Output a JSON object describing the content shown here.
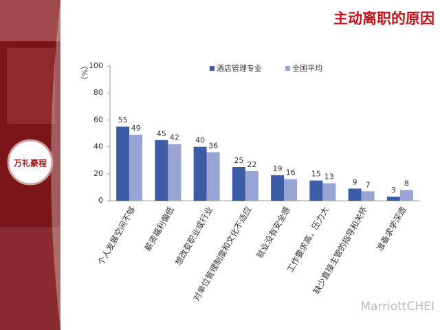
{
  "chart_data": {
    "type": "bar",
    "title": "主动离职的原因",
    "y_label": "（%）",
    "categories": [
      "个人发展空间不够",
      "薪资福利偏低",
      "想改变职业或行业",
      "对单位管理制度和文化不适应",
      "就业没有安全感",
      "工作要求高，压力大",
      "缺少直接主管的指导和关怀",
      "准备求学深造"
    ],
    "series": [
      {
        "name": "酒店管理专业",
        "color": "#3d5ca6",
        "values": [
          55,
          45,
          40,
          25,
          19,
          15,
          9,
          3
        ]
      },
      {
        "name": "全国平均",
        "color": "#98a4d4",
        "values": [
          49,
          42,
          36,
          22,
          16,
          13,
          7,
          8
        ]
      }
    ],
    "ylim": [
      0,
      100
    ],
    "yticks": [
      0,
      20,
      40,
      60,
      80,
      100
    ],
    "grid": false,
    "legend": "top"
  },
  "logo": "万礼豪程",
  "watermark": "MarriottCHEI"
}
